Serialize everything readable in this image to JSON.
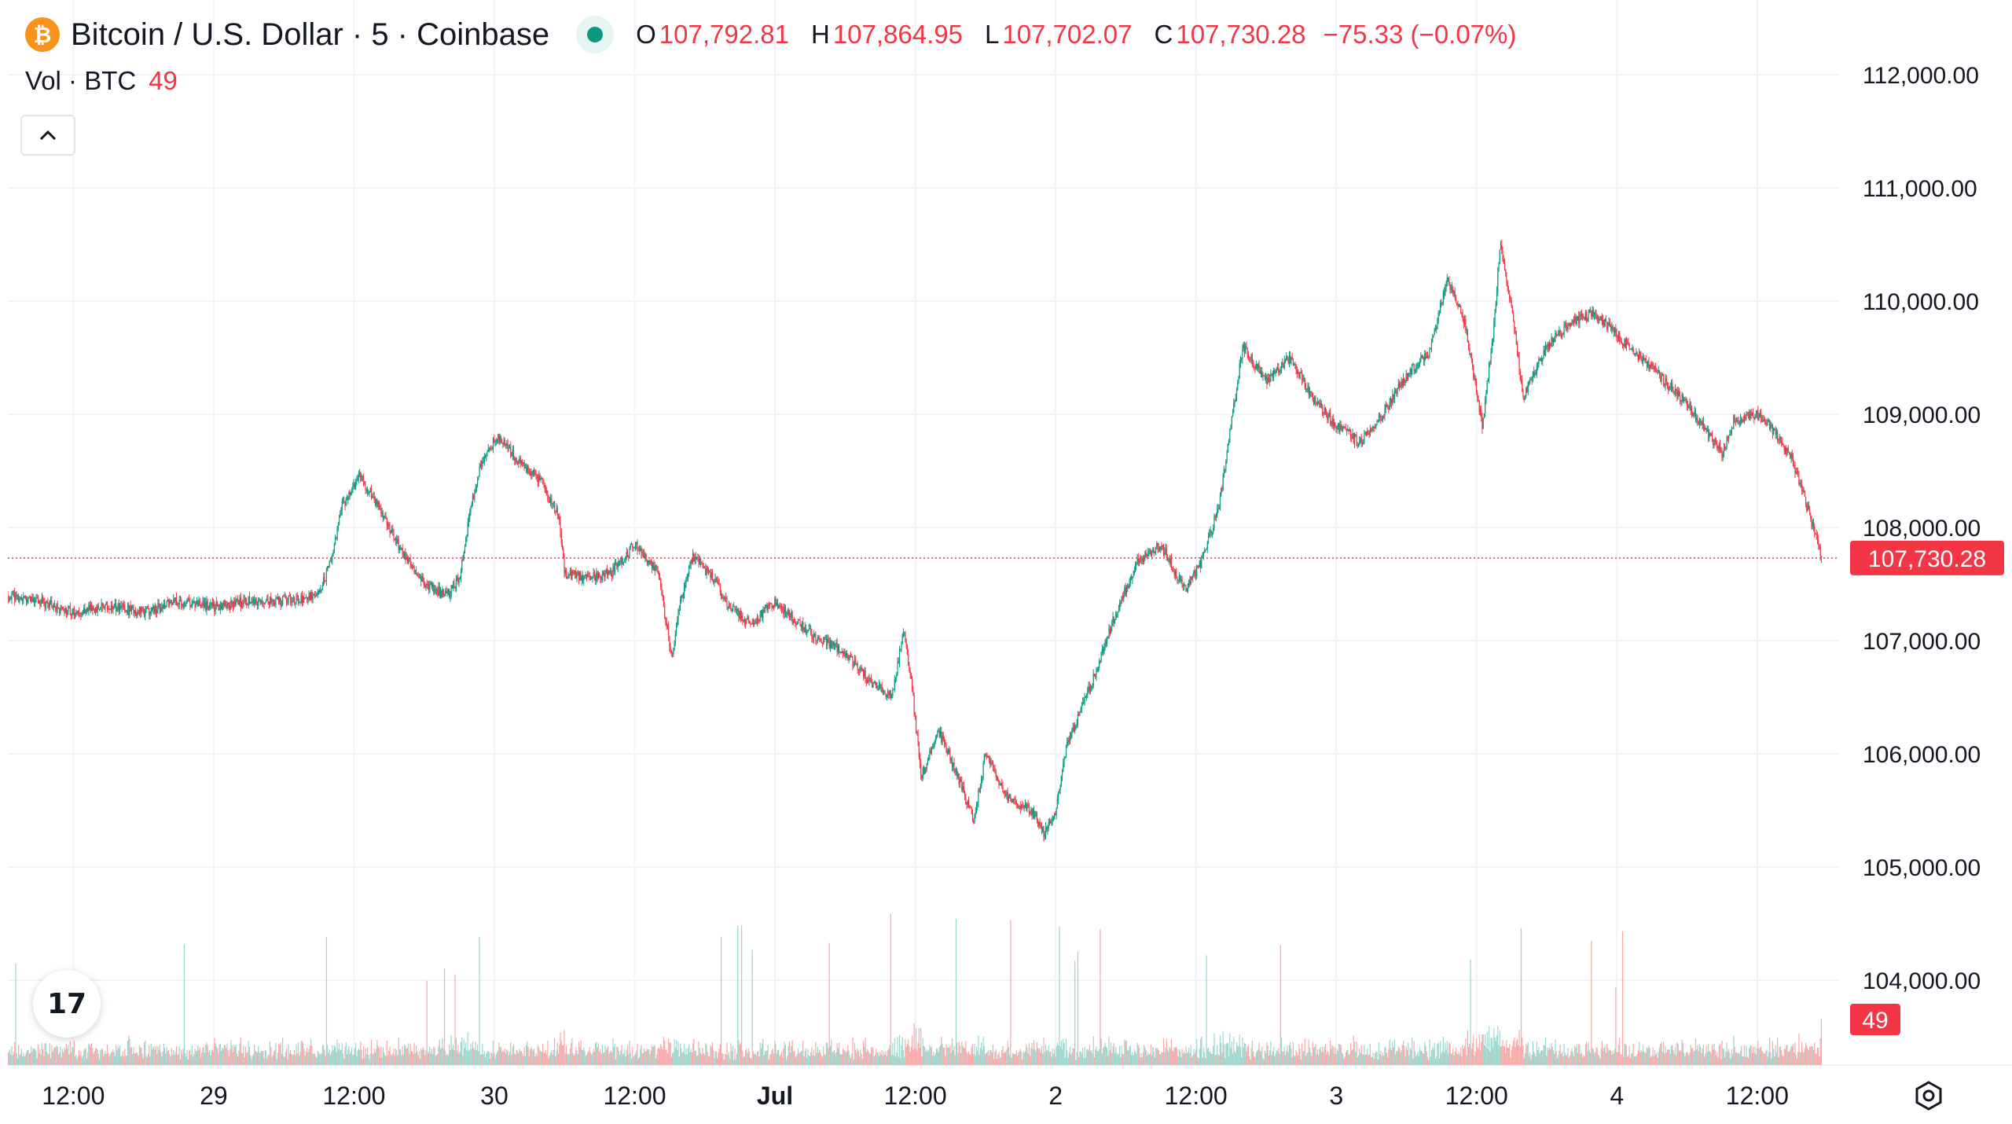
{
  "header": {
    "symbol_icon": "bitcoin-icon",
    "symbol_logo_glyph": "₿",
    "title": "Bitcoin / U.S. Dollar · 5 · Coinbase",
    "open_label": "O",
    "open": "107,792.81",
    "high_label": "H",
    "high": "107,864.95",
    "low_label": "L",
    "low": "107,702.07",
    "close_label": "C",
    "close": "107,730.28",
    "change": "−75.33 (−0.07%)"
  },
  "volume_legend": {
    "label": "Vol · BTC",
    "value": "49"
  },
  "tv_logo_text": "17",
  "colors": {
    "up": "#089981",
    "down": "#f23645",
    "vol_up": "#9cd6ce",
    "vol_down": "#f7a9a7",
    "price_tag": "#f23645",
    "grid": "#f0f3fa",
    "text": "#131722"
  },
  "chart_data": {
    "type": "candlestick",
    "interval": "5",
    "price_axis": {
      "ylim": [
        103500,
        112600
      ],
      "ticks": [
        112000,
        111000,
        110000,
        109000,
        108000,
        107000,
        106000,
        105000,
        104000
      ],
      "tick_labels": [
        "112,000.00",
        "111,000.00",
        "110,000.00",
        "109,000.00",
        "108,000.00",
        "107,000.00",
        "106,000.00",
        "105,000.00",
        "104,000.00"
      ]
    },
    "time_axis": {
      "labels": [
        "12:00",
        "29",
        "12:00",
        "30",
        "12:00",
        "Jul",
        "12:00",
        "2",
        "12:00",
        "3",
        "12:00",
        "4",
        "12:00"
      ],
      "label_hours": [
        12,
        24,
        36,
        48,
        60,
        72,
        84,
        96,
        108,
        120,
        132,
        144,
        156
      ],
      "start_hour": 6.4,
      "end_hour": 163.0
    },
    "last_price": 107730.28,
    "last_price_label": "107,730.28",
    "last_volume": 49,
    "last_volume_label": "49",
    "price_path": [
      [
        6.4,
        107400
      ],
      [
        9,
        107350
      ],
      [
        12,
        107250
      ],
      [
        15,
        107300
      ],
      [
        18,
        107250
      ],
      [
        21,
        107350
      ],
      [
        24,
        107300
      ],
      [
        27,
        107350
      ],
      [
        30,
        107350
      ],
      [
        33,
        107400
      ],
      [
        34,
        107700
      ],
      [
        35,
        108200
      ],
      [
        36.5,
        108450
      ],
      [
        38,
        108200
      ],
      [
        40,
        107800
      ],
      [
        42,
        107500
      ],
      [
        44,
        107400
      ],
      [
        45,
        107550
      ],
      [
        46,
        108200
      ],
      [
        47,
        108600
      ],
      [
        48.3,
        108800
      ],
      [
        50,
        108600
      ],
      [
        52,
        108400
      ],
      [
        53.5,
        108100
      ],
      [
        54,
        107600
      ],
      [
        56,
        107550
      ],
      [
        58,
        107600
      ],
      [
        60,
        107850
      ],
      [
        62,
        107600
      ],
      [
        63.2,
        106850
      ],
      [
        64,
        107400
      ],
      [
        65,
        107750
      ],
      [
        67,
        107500
      ],
      [
        68,
        107300
      ],
      [
        70,
        107150
      ],
      [
        72,
        107350
      ],
      [
        74,
        107150
      ],
      [
        76,
        107000
      ],
      [
        78,
        106900
      ],
      [
        80,
        106650
      ],
      [
        82,
        106500
      ],
      [
        83,
        107100
      ],
      [
        83.7,
        106600
      ],
      [
        84.5,
        105800
      ],
      [
        86,
        106200
      ],
      [
        88,
        105700
      ],
      [
        89,
        105400
      ],
      [
        90,
        106000
      ],
      [
        92,
        105600
      ],
      [
        94,
        105500
      ],
      [
        95,
        105300
      ],
      [
        96,
        105500
      ],
      [
        97,
        106100
      ],
      [
        99,
        106600
      ],
      [
        101,
        107200
      ],
      [
        103,
        107700
      ],
      [
        105,
        107850
      ],
      [
        107,
        107450
      ],
      [
        108.5,
        107700
      ],
      [
        110,
        108200
      ],
      [
        111,
        108900
      ],
      [
        112,
        109600
      ],
      [
        114,
        109300
      ],
      [
        116,
        109500
      ],
      [
        118,
        109150
      ],
      [
        120,
        108900
      ],
      [
        122,
        108750
      ],
      [
        124,
        109000
      ],
      [
        126,
        109350
      ],
      [
        128,
        109550
      ],
      [
        129.5,
        110200
      ],
      [
        131,
        109800
      ],
      [
        132.5,
        108900
      ],
      [
        133.5,
        109800
      ],
      [
        134,
        110500
      ],
      [
        135,
        109900
      ],
      [
        136,
        109150
      ],
      [
        138,
        109600
      ],
      [
        140,
        109800
      ],
      [
        142,
        109900
      ],
      [
        144,
        109700
      ],
      [
        146,
        109500
      ],
      [
        148,
        109300
      ],
      [
        150,
        109100
      ],
      [
        152,
        108800
      ],
      [
        153,
        108650
      ],
      [
        154,
        108950
      ],
      [
        156,
        109000
      ],
      [
        157,
        108900
      ],
      [
        159,
        108600
      ],
      [
        160.5,
        108100
      ],
      [
        161.5,
        107730.28
      ]
    ]
  }
}
